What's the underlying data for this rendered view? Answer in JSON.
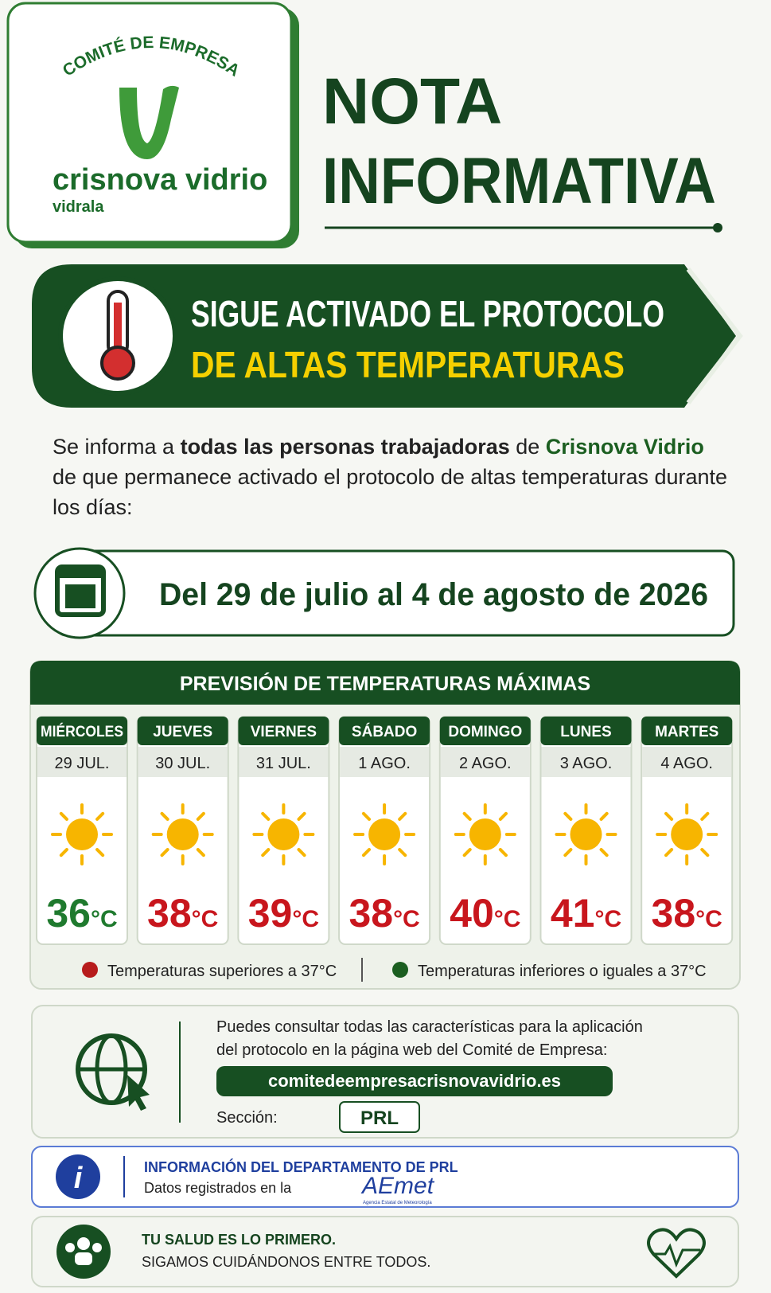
{
  "logo": {
    "top": "COMITÉ DE EMPRESA",
    "brand": "crisnova vidrio",
    "sub": "vidrala"
  },
  "header": {
    "title_line1": "NOTA",
    "title_line2": "INFORMATIVA"
  },
  "banner": {
    "line1": "SIGUE ACTIVADO EL PROTOCOLO",
    "line2": "DE ALTAS TEMPERATURAS"
  },
  "intro": {
    "parts": [
      "Se informa a ",
      "todas las personas trabajadoras",
      " de ",
      "Crisnova Vidrio",
      " de que permanece activado el protocolo de altas temperaturas durante los días:"
    ]
  },
  "dates": "Del 29 de julio al 4 de agosto de 2026",
  "forecast": {
    "title": "PREVISIÓN DE TEMPERATURAS MÁXIMAS",
    "days": [
      {
        "weekday": "MIÉRCOLES",
        "date": "29 JUL.",
        "temp": 36,
        "unit": "°C",
        "color": "#1f7a2e"
      },
      {
        "weekday": "JUEVES",
        "date": "30 JUL.",
        "temp": 38,
        "unit": "°C",
        "color": "#c8161d"
      },
      {
        "weekday": "VIERNES",
        "date": "31 JUL.",
        "temp": 39,
        "unit": "°C",
        "color": "#c8161d"
      },
      {
        "weekday": "SÁBADO",
        "date": "1 AGO.",
        "temp": 38,
        "unit": "°C",
        "color": "#c8161d"
      },
      {
        "weekday": "DOMINGO",
        "date": "2 AGO.",
        "temp": 40,
        "unit": "°C",
        "color": "#c8161d"
      },
      {
        "weekday": "LUNES",
        "date": "3 AGO.",
        "temp": 41,
        "unit": "°C",
        "color": "#c8161d"
      },
      {
        "weekday": "MARTES",
        "date": "4 AGO.",
        "temp": 38,
        "unit": "°C",
        "color": "#c8161d"
      }
    ],
    "legend": [
      {
        "label": "Temperaturas superiores a 37°C",
        "color": "#b71c1c"
      },
      {
        "label": "Temperaturas inferiores o iguales a 37°C",
        "color": "#1b5e20"
      }
    ]
  },
  "web": {
    "line1": "Puedes consultar todas las características para la aplicación",
    "line2": "del protocolo en la página web del Comité de Empresa:",
    "url": "comitedeempresacrisnovavidrio.es",
    "section_label": "Sección:",
    "section": "PRL"
  },
  "info": {
    "title": "INFORMACIÓN DEL DEPARTAMENTO DE PRL",
    "text": "Datos registrados en la",
    "logo": "AEmet",
    "logo_sub": "Agencia Estatal de Meteorología"
  },
  "footer": {
    "line1": "TU SALUD ES LO PRIMERO.",
    "line2": "SIGAMOS CUIDÁNDONOS ENTRE TODOS."
  }
}
